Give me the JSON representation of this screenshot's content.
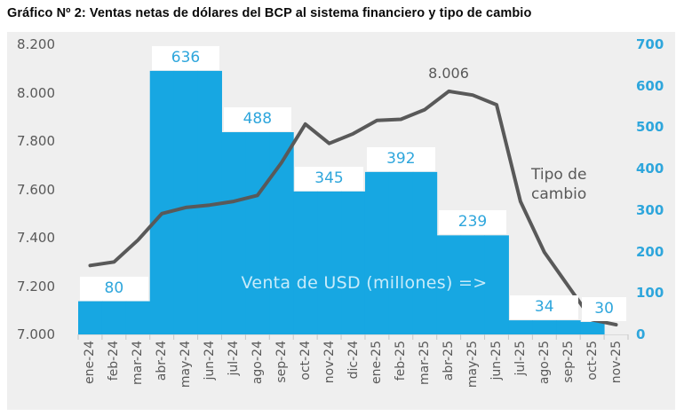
{
  "title": "Gráfico Nº 2: Ventas netas de dólares del BCP al sistema financiero y tipo de cambio",
  "chart_data": {
    "type": "combo (bar + line)",
    "x_labels": [
      "ene-24",
      "feb-24",
      "mar-24",
      "abr-24",
      "may-24",
      "jun-24",
      "jul-24",
      "ago-24",
      "sep-24",
      "oct-24",
      "nov-24",
      "dic-24",
      "ene-25",
      "feb-25",
      "mar-25",
      "abr-25",
      "may-25",
      "jun-25",
      "jul-25",
      "ago-25",
      "sep-25",
      "oct-25",
      "nov-25"
    ],
    "series": [
      {
        "name": "Venta de USD (millones)",
        "type": "bar",
        "axis": "right",
        "color": "#17a7e2",
        "values": [
          80,
          80,
          80,
          636,
          636,
          636,
          488,
          488,
          488,
          345,
          345,
          345,
          392,
          392,
          392,
          239,
          239,
          239,
          34,
          34,
          34,
          30,
          0
        ]
      },
      {
        "name": "Tipo de cambio",
        "type": "line",
        "axis": "left",
        "color": "#595959",
        "values": [
          7285,
          7300,
          7390,
          7500,
          7525,
          7535,
          7550,
          7575,
          7710,
          7870,
          7790,
          7830,
          7885,
          7890,
          7930,
          8006,
          7990,
          7950,
          7550,
          7340,
          7200,
          7060,
          7040
        ]
      }
    ],
    "bar_value_labels": [
      {
        "text": "80",
        "value": 80,
        "start_index": 0,
        "span": 3
      },
      {
        "text": "636",
        "value": 636,
        "start_index": 3,
        "span": 3
      },
      {
        "text": "488",
        "value": 488,
        "start_index": 6,
        "span": 3
      },
      {
        "text": "345",
        "value": 345,
        "start_index": 9,
        "span": 3
      },
      {
        "text": "392",
        "value": 392,
        "start_index": 12,
        "span": 3
      },
      {
        "text": "239",
        "value": 239,
        "start_index": 15,
        "span": 3
      },
      {
        "text": "34",
        "value": 34,
        "start_index": 18,
        "span": 3
      },
      {
        "text": "30",
        "value": 30,
        "start_index": 21,
        "span": 2
      }
    ],
    "left_axis": {
      "tick_labels": [
        "7.000",
        "7.200",
        "7.400",
        "7.600",
        "7.800",
        "8.000",
        "8.200"
      ],
      "min": 7000,
      "max": 8200,
      "step": 200,
      "color": "#595959"
    },
    "right_axis": {
      "tick_labels": [
        "0",
        "100",
        "200",
        "300",
        "400",
        "500",
        "600",
        "700"
      ],
      "min": 0,
      "max": 700,
      "step": 100,
      "color": "#2ea6dc"
    },
    "annotations": {
      "peak_label": {
        "text": "8.006",
        "value": 8006,
        "month": "abr-25"
      },
      "line_label": {
        "line1": "Tipo de",
        "line2": "cambio"
      },
      "bar_label": {
        "text": "Venta de USD (millones) =>"
      }
    },
    "grid": false,
    "plot_background": "#efefef"
  }
}
